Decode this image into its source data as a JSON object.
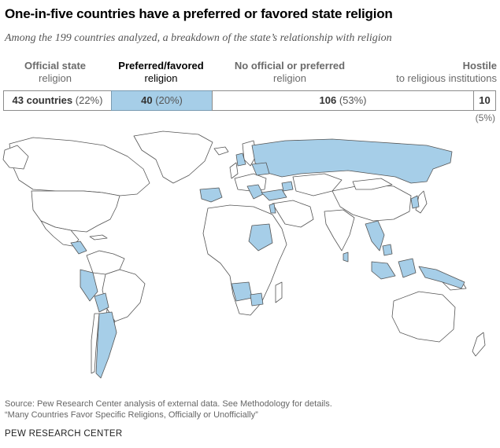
{
  "title": "One-in-five countries have a preferred or favored state religion",
  "subtitle": "Among the 199 countries analyzed, a breakdown of the state’s relationship with religion",
  "categories": [
    {
      "head": "Official state",
      "sub": "religion",
      "count_bold": "43 countries",
      "count_pct": "(22%)"
    },
    {
      "head": "Preferred/favored",
      "sub": "religion",
      "count_bold": "40",
      "count_pct": "(20%)"
    },
    {
      "head": "No official or preferred",
      "sub": "religion",
      "count_bold": "106",
      "count_pct": "(53%)"
    },
    {
      "head": "Hostile",
      "sub": "to religious institutions",
      "count_bold": "10",
      "count_pct": "(5%)"
    }
  ],
  "colors": {
    "preferred": "#a6cee8",
    "other": "#ffffff",
    "border": "#555555"
  },
  "footer": {
    "source": "Source: Pew Research Center analysis of external data. See Methodology for details.",
    "report": "“Many Countries Favor Specific Religions, Officially or Unofficially”",
    "brand": "PEW RESEARCH CENTER"
  }
}
